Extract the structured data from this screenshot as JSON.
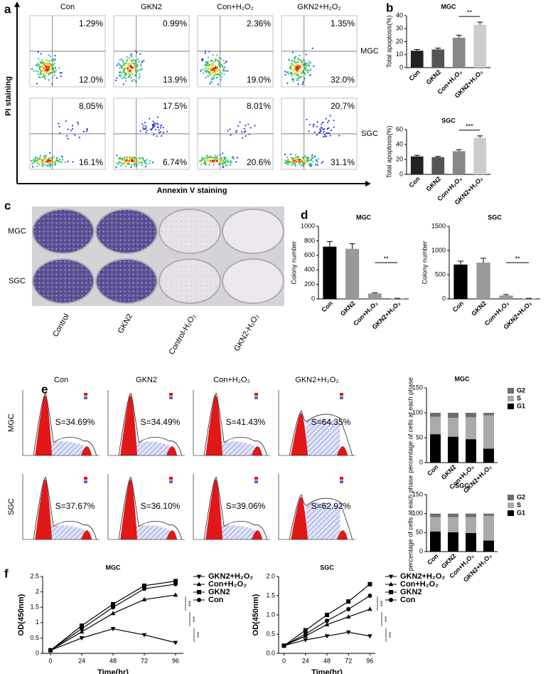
{
  "panel_letters": [
    "a",
    "b",
    "c",
    "d",
    "e",
    "f"
  ],
  "flow_cytometry": {
    "columns": [
      "Con",
      "GKN2",
      "Con+H₂O₂",
      "GKN2+H₂O₂"
    ],
    "rows": [
      "MGC",
      "SGC"
    ],
    "y_label": "PI staining",
    "x_label": "Annexin V staining",
    "upper_right": [
      [
        "1.29%",
        "0.99%",
        "2.36%",
        "1.35%"
      ],
      [
        "8.05%",
        "17.5%",
        "8.01%",
        "20.7%"
      ]
    ],
    "lower_right": [
      [
        "12.0%",
        "13.9%",
        "19.0%",
        "32.0%"
      ],
      [
        "16.1%",
        "6.74%",
        "20.6%",
        "31.1%"
      ]
    ]
  },
  "colony_plates": {
    "rows": [
      "MGC",
      "SGC"
    ],
    "columns": [
      "Control",
      "GKN2",
      "Control-H₂O₂",
      "GKN2-H₂O₂"
    ]
  },
  "cell_cycle": {
    "columns": [
      "Con",
      "GKN2",
      "Con+H₂O₂",
      "GKN2+H₂O₂"
    ],
    "rows": [
      "MGC",
      "SGC"
    ],
    "s_phase": [
      [
        "S=34.69%",
        "S=34.49%",
        "S=41.43%",
        "S=64.35%"
      ],
      [
        "S=37.67%",
        "S=36.10%",
        "S=39.06%",
        "S=62.92%"
      ]
    ]
  },
  "chart_data": [
    {
      "type": "bar",
      "title": "MGC",
      "y_label": "Total apoptosis(%)",
      "categories": [
        "Con",
        "GKN2",
        "Con+H₂O₂",
        "GKN2+H₂O₂"
      ],
      "values": [
        13,
        14,
        23,
        33
      ],
      "errors": [
        1,
        1,
        2,
        2
      ],
      "colors": [
        "#222222",
        "#555555",
        "#888888",
        "#cccccc"
      ],
      "ylim": [
        0,
        40
      ],
      "yticks": [
        0,
        10,
        20,
        30,
        40
      ],
      "significance": "**"
    },
    {
      "type": "bar",
      "title": "SGC",
      "y_label": "Total apoptosis(%)",
      "categories": [
        "Con",
        "GKN2",
        "Con+H₂O₂",
        "GKN2+H₂O₂"
      ],
      "values": [
        24,
        23,
        31,
        49
      ],
      "errors": [
        1.5,
        1,
        2,
        2.5
      ],
      "colors": [
        "#222222",
        "#555555",
        "#888888",
        "#cccccc"
      ],
      "ylim": [
        0,
        60
      ],
      "yticks": [
        0,
        20,
        40,
        60
      ],
      "significance": "***"
    },
    {
      "type": "bar",
      "title": "MGC",
      "y_label": "Colony number",
      "categories": [
        "Con",
        "GKN2",
        "Con+H₂O₂",
        "GKN2+H₂O₂"
      ],
      "values": [
        720,
        690,
        75,
        5
      ],
      "errors": [
        70,
        70,
        10,
        3
      ],
      "colors": [
        "#000000",
        "#999999",
        "#999999",
        "#999999"
      ],
      "ylim": [
        0,
        1000
      ],
      "yticks": [
        0,
        200,
        400,
        600,
        800,
        1000
      ],
      "significance": "**"
    },
    {
      "type": "bar",
      "title": "SGC",
      "y_label": "Colony number",
      "categories": [
        "Con",
        "GKN2",
        "Con+H₂O₂",
        "GKN2+H₂O₂"
      ],
      "values": [
        710,
        750,
        70,
        8
      ],
      "errors": [
        70,
        90,
        20,
        4
      ],
      "colors": [
        "#000000",
        "#999999",
        "#999999",
        "#999999"
      ],
      "ylim": [
        0,
        1500
      ],
      "yticks": [
        0,
        500,
        1000,
        1500
      ],
      "significance": "**"
    },
    {
      "type": "stacked_bar",
      "title": "MGC",
      "y_label": "percentage of cells at each phase",
      "categories": [
        "Con",
        "GKN2",
        "Con+H₂O₂",
        "GKN2+H₂O₂"
      ],
      "series": [
        {
          "name": "G1",
          "color": "#000000",
          "values": [
            57,
            52,
            47,
            28
          ]
        },
        {
          "name": "S",
          "color": "#aaaaaa",
          "values": [
            35,
            38,
            44,
            67
          ]
        },
        {
          "name": "G2",
          "color": "#6e6e6e",
          "values": [
            8,
            10,
            9,
            5
          ]
        }
      ],
      "ylim": [
        0,
        150
      ],
      "yticks": [
        0,
        50,
        100,
        150
      ]
    },
    {
      "type": "stacked_bar",
      "title": "SGC",
      "y_label": "percentage of cells at each phase",
      "categories": [
        "Con",
        "GKN2",
        "Con+H₂O₂",
        "GKN2+H₂O₂"
      ],
      "series": [
        {
          "name": "G1",
          "color": "#000000",
          "values": [
            53,
            51,
            49,
            29
          ]
        },
        {
          "name": "S",
          "color": "#aaaaaa",
          "values": [
            38,
            40,
            42,
            65
          ]
        },
        {
          "name": "G2",
          "color": "#6e6e6e",
          "values": [
            9,
            9,
            9,
            6
          ]
        }
      ],
      "ylim": [
        0,
        150
      ],
      "yticks": [
        0,
        50,
        100,
        150
      ]
    },
    {
      "type": "line",
      "title": "MGC",
      "x_label": "Time(hr)",
      "y_label": "OD(450nm)",
      "x": [
        0,
        24,
        48,
        72,
        96
      ],
      "series": [
        {
          "name": "GKN2+H₂O₂",
          "color": "#000000",
          "marker": "triangle-down",
          "values": [
            0.1,
            0.5,
            0.8,
            0.6,
            0.35
          ]
        },
        {
          "name": "Con+H₂O₂",
          "color": "#000000",
          "marker": "triangle-up",
          "values": [
            0.1,
            0.7,
            1.3,
            1.75,
            1.9
          ]
        },
        {
          "name": "GKN2",
          "color": "#000000",
          "marker": "square",
          "values": [
            0.1,
            0.9,
            1.6,
            2.2,
            2.35
          ]
        },
        {
          "name": "Con",
          "color": "#000000",
          "marker": "circle",
          "values": [
            0.1,
            0.8,
            1.5,
            2.1,
            2.25
          ]
        }
      ],
      "xlim": [
        -6,
        102
      ],
      "xticks": [
        0,
        24,
        48,
        72,
        96
      ],
      "ylim": [
        0,
        2.5
      ],
      "yticks": [
        0,
        0.5,
        1,
        1.5,
        2,
        2.5
      ],
      "significance": [
        "***",
        "***",
        "***"
      ]
    },
    {
      "type": "line",
      "title": "SGC",
      "x_label": "Time(hr)",
      "y_label": "OD(450nm)",
      "x": [
        0,
        24,
        48,
        72,
        96
      ],
      "series": [
        {
          "name": "GKN2+H₂O₂",
          "color": "#000000",
          "marker": "triangle-down",
          "values": [
            0.2,
            0.35,
            0.45,
            0.55,
            0.45
          ]
        },
        {
          "name": "Con+H₂O₂",
          "color": "#000000",
          "marker": "triangle-up",
          "values": [
            0.2,
            0.45,
            0.75,
            0.95,
            1.15
          ]
        },
        {
          "name": "GKN2",
          "color": "#000000",
          "marker": "square",
          "values": [
            0.2,
            0.6,
            1.0,
            1.35,
            1.8
          ]
        },
        {
          "name": "Con",
          "color": "#000000",
          "marker": "circle",
          "values": [
            0.2,
            0.5,
            0.85,
            1.15,
            1.5
          ]
        }
      ],
      "xlim": [
        -6,
        102
      ],
      "xticks": [
        0,
        24,
        48,
        72,
        96
      ],
      "ylim": [
        0,
        2
      ],
      "yticks": [
        {
          "value": 0,
          "label": "0.0"
        },
        {
          "value": 0.5,
          "label": "0.5"
        },
        {
          "value": 1,
          "label": "1.0"
        },
        {
          "value": 1.5,
          "label": "1.5"
        },
        {
          "value": 2,
          "label": "2.0"
        }
      ],
      "significance": [
        "***",
        "***",
        "***"
      ]
    }
  ]
}
